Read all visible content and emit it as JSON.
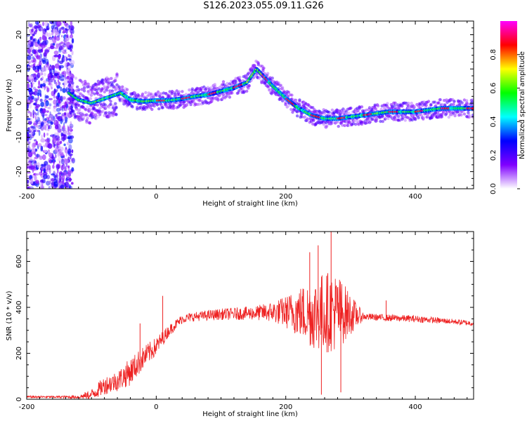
{
  "title": "S126.2023.055.09.11.G26",
  "chart_data": [
    {
      "type": "heatmap",
      "xlabel": "Height of straight line (km)",
      "ylabel": "Frequency (Hz)",
      "xlim": [
        -200,
        490
      ],
      "ylim": [
        -25,
        24
      ],
      "x_ticks": [
        "-200",
        "0",
        "200",
        "400"
      ],
      "y_ticks": [
        "-20",
        "-10",
        "0",
        "10",
        "20"
      ],
      "colorbar": {
        "label": "Normalized spectral amplitude",
        "range": [
          0,
          1
        ],
        "ticks": [
          "0.0",
          "0.2",
          "0.4",
          "0.6",
          "0.8"
        ],
        "colors": [
          "#ffffff",
          "#7f00ff",
          "#0000ff",
          "#00ffff",
          "#00ff00",
          "#ffff00",
          "#ff0000",
          "#ff00ff"
        ]
      },
      "ridge": {
        "x": [
          -135,
          -120,
          -100,
          -85,
          -70,
          -55,
          -40,
          -20,
          0,
          20,
          40,
          60,
          80,
          100,
          120,
          140,
          155,
          165,
          180,
          200,
          220,
          240,
          260,
          280,
          300,
          320,
          340,
          360,
          380,
          400,
          420,
          440,
          460,
          490
        ],
        "y": [
          3,
          1,
          0,
          1,
          2,
          3,
          1,
          0.5,
          0.8,
          0.8,
          1.3,
          2,
          2.5,
          3.5,
          4.5,
          6,
          10,
          8,
          5,
          1.5,
          -1.5,
          -3.5,
          -4.5,
          -4.5,
          -4,
          -3.5,
          -3,
          -2.5,
          -2.5,
          -2.5,
          -2,
          -1.5,
          -1.5,
          -1.5
        ]
      },
      "noise_region_x": [
        -200,
        -128
      ]
    },
    {
      "type": "line",
      "xlabel": "Height of straight line (km)",
      "ylabel": "SNR (10 * v/v)",
      "xlim": [
        -200,
        490
      ],
      "ylim": [
        0,
        730
      ],
      "x_ticks": [
        "-200",
        "0",
        "200",
        "400"
      ],
      "y_ticks": [
        "0",
        "200",
        "400",
        "600"
      ],
      "line_color": "#ee2222",
      "series": [
        {
          "x": [
            -200,
            -150,
            -120,
            -100,
            -80,
            -60,
            -40,
            -20,
            0,
            20,
            40,
            60,
            100,
            150,
            180,
            200,
            220,
            240,
            260,
            280,
            300,
            320,
            350,
            400,
            450,
            490
          ],
          "y": [
            10,
            10,
            10,
            20,
            60,
            80,
            120,
            180,
            230,
            300,
            350,
            360,
            370,
            375,
            380,
            380,
            380,
            370,
            380,
            380,
            370,
            360,
            355,
            350,
            340,
            330
          ],
          "spread": [
            5,
            5,
            8,
            25,
            40,
            45,
            60,
            50,
            40,
            25,
            20,
            20,
            25,
            30,
            45,
            70,
            110,
            150,
            180,
            170,
            90,
            15,
            15,
            15,
            12,
            12
          ]
        }
      ],
      "peaks": [
        {
          "x": -25,
          "y": 330
        },
        {
          "x": 10,
          "y": 450
        },
        {
          "x": 237,
          "y": 640
        },
        {
          "x": 250,
          "y": 670
        },
        {
          "x": 270,
          "y": 730
        },
        {
          "x": 255,
          "y": 20
        },
        {
          "x": 285,
          "y": 30
        },
        {
          "x": 355,
          "y": 430
        }
      ]
    }
  ]
}
